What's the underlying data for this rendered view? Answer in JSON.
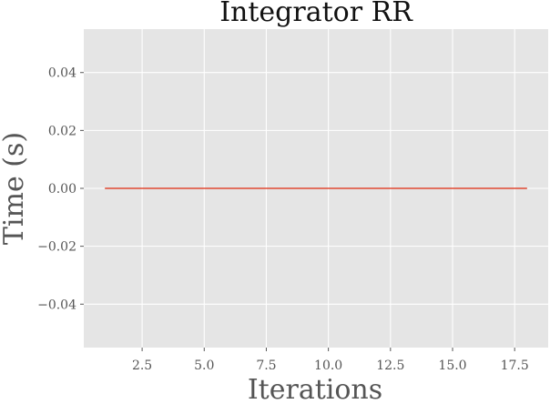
{
  "chart_data": {
    "type": "line",
    "title": "Integrator RR",
    "xlabel": "Iterations",
    "ylabel": "Time (s)",
    "xlim": [
      0.15,
      18.85
    ],
    "ylim": [
      -0.055,
      0.055
    ],
    "xticks": [
      2.5,
      5.0,
      7.5,
      10.0,
      12.5,
      15.0,
      17.5
    ],
    "xtick_labels": [
      "2.5",
      "5.0",
      "7.5",
      "10.0",
      "12.5",
      "15.0",
      "17.5"
    ],
    "yticks": [
      -0.04,
      -0.02,
      0.0,
      0.02,
      0.04
    ],
    "ytick_labels": [
      "−0.04",
      "−0.02",
      "0.00",
      "0.02",
      "0.04"
    ],
    "grid": true,
    "series": [
      {
        "x": [
          1,
          2,
          3,
          4,
          5,
          6,
          7,
          8,
          9,
          10,
          11,
          12,
          13,
          14,
          15,
          16,
          17,
          18
        ],
        "y": [
          0,
          0,
          0,
          0,
          0,
          0,
          0,
          0,
          0,
          0,
          0,
          0,
          0,
          0,
          0,
          0,
          0,
          0
        ],
        "color": "#e24a33"
      }
    ]
  }
}
